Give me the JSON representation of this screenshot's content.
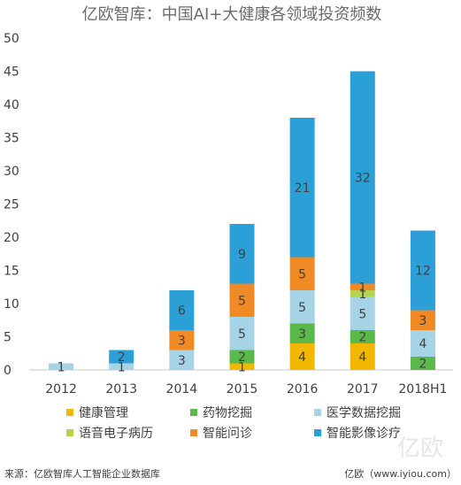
{
  "chart_data": {
    "type": "bar",
    "stacked": true,
    "title": "亿欧智库：中国AI+大健康各领域投资频数",
    "categories": [
      "2012",
      "2013",
      "2014",
      "2015",
      "2016",
      "2017",
      "2018H1"
    ],
    "ylim": [
      0,
      50
    ],
    "yticks": [
      0,
      5,
      10,
      15,
      20,
      25,
      30,
      35,
      40,
      45,
      50
    ],
    "grid": false,
    "legend_position": "bottom",
    "series": [
      {
        "name": "健康管理",
        "color": "#f2b800",
        "values": [
          0,
          0,
          0,
          1,
          4,
          4,
          0
        ]
      },
      {
        "name": "药物挖掘",
        "color": "#5ab94a",
        "values": [
          0,
          0,
          0,
          2,
          3,
          2,
          2
        ]
      },
      {
        "name": "医学数据挖掘",
        "color": "#a7d3e6",
        "values": [
          1,
          1,
          3,
          5,
          5,
          5,
          4
        ]
      },
      {
        "name": "语音电子病历",
        "color": "#b4d54b",
        "values": [
          0,
          0,
          0,
          0,
          0,
          1,
          0
        ]
      },
      {
        "name": "智能问诊",
        "color": "#f08a25",
        "values": [
          0,
          0,
          3,
          5,
          5,
          1,
          3
        ]
      },
      {
        "name": "智能影像诊疗",
        "color": "#2b9fd6",
        "values": [
          0,
          2,
          6,
          9,
          21,
          32,
          12
        ]
      }
    ]
  },
  "footer": {
    "source": "来源：亿欧智库人工智能企业数据库",
    "site": "亿欧（www.iyiou.com）"
  },
  "watermark": "亿欧"
}
